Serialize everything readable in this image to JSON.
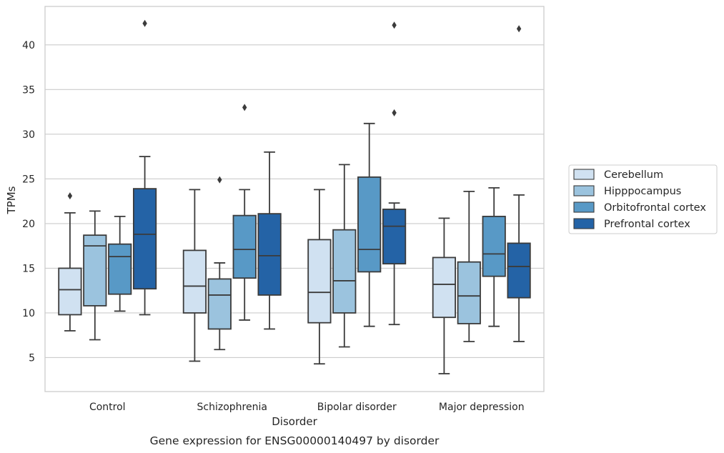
{
  "caption": "Gene expression for ENSG00000140497 by disorder",
  "chart_data": {
    "type": "box",
    "title": "",
    "xlabel": "Disorder",
    "ylabel": "TPMs",
    "ylim": [
      1.2,
      44.3
    ],
    "yticks": [
      5,
      10,
      15,
      20,
      25,
      30,
      35,
      40
    ],
    "grid": true,
    "legend_position": "right",
    "categories": [
      "Control",
      "Schizophrenia",
      "Bipolar disorder",
      "Major depression"
    ],
    "series": [
      {
        "name": "Cerebellum",
        "color": "#d0e1f1",
        "boxes": [
          {
            "whislo": 8.0,
            "q1": 9.8,
            "med": 12.6,
            "q3": 15.0,
            "whishi": 21.2,
            "fliers": [
              23.1
            ]
          },
          {
            "whislo": 4.6,
            "q1": 10.0,
            "med": 13.0,
            "q3": 17.0,
            "whishi": 23.8,
            "fliers": []
          },
          {
            "whislo": 4.3,
            "q1": 8.9,
            "med": 12.3,
            "q3": 18.2,
            "whishi": 23.8,
            "fliers": []
          },
          {
            "whislo": 3.2,
            "q1": 9.5,
            "med": 13.2,
            "q3": 16.2,
            "whishi": 20.6,
            "fliers": []
          }
        ]
      },
      {
        "name": "Hipppocampus",
        "color": "#9bc3de",
        "boxes": [
          {
            "whislo": 7.0,
            "q1": 10.8,
            "med": 17.5,
            "q3": 18.7,
            "whishi": 21.4,
            "fliers": []
          },
          {
            "whislo": 5.9,
            "q1": 8.2,
            "med": 12.0,
            "q3": 13.8,
            "whishi": 15.6,
            "fliers": [
              24.9
            ]
          },
          {
            "whislo": 6.2,
            "q1": 10.0,
            "med": 13.6,
            "q3": 19.3,
            "whishi": 26.6,
            "fliers": []
          },
          {
            "whislo": 6.8,
            "q1": 8.8,
            "med": 11.9,
            "q3": 15.7,
            "whishi": 23.6,
            "fliers": []
          }
        ]
      },
      {
        "name": "Orbitofrontal cortex",
        "color": "#5899c6",
        "boxes": [
          {
            "whislo": 10.2,
            "q1": 12.1,
            "med": 16.3,
            "q3": 17.7,
            "whishi": 20.8,
            "fliers": []
          },
          {
            "whislo": 9.2,
            "q1": 13.9,
            "med": 17.1,
            "q3": 20.9,
            "whishi": 23.8,
            "fliers": [
              33.0
            ]
          },
          {
            "whislo": 8.5,
            "q1": 14.6,
            "med": 17.1,
            "q3": 25.2,
            "whishi": 31.2,
            "fliers": []
          },
          {
            "whislo": 8.5,
            "q1": 14.1,
            "med": 16.6,
            "q3": 20.8,
            "whishi": 24.0,
            "fliers": []
          }
        ]
      },
      {
        "name": "Prefrontal cortex",
        "color": "#2463a6",
        "boxes": [
          {
            "whislo": 9.8,
            "q1": 12.7,
            "med": 18.8,
            "q3": 23.9,
            "whishi": 27.5,
            "fliers": [
              42.4
            ]
          },
          {
            "whislo": 8.2,
            "q1": 12.0,
            "med": 16.4,
            "q3": 21.1,
            "whishi": 28.0,
            "fliers": []
          },
          {
            "whislo": 8.7,
            "q1": 15.5,
            "med": 19.7,
            "q3": 21.6,
            "whishi": 22.3,
            "fliers": [
              42.2,
              32.4
            ]
          },
          {
            "whislo": 6.8,
            "q1": 11.7,
            "med": 15.2,
            "q3": 17.8,
            "whishi": 23.2,
            "fliers": [
              41.8
            ]
          }
        ]
      }
    ]
  }
}
